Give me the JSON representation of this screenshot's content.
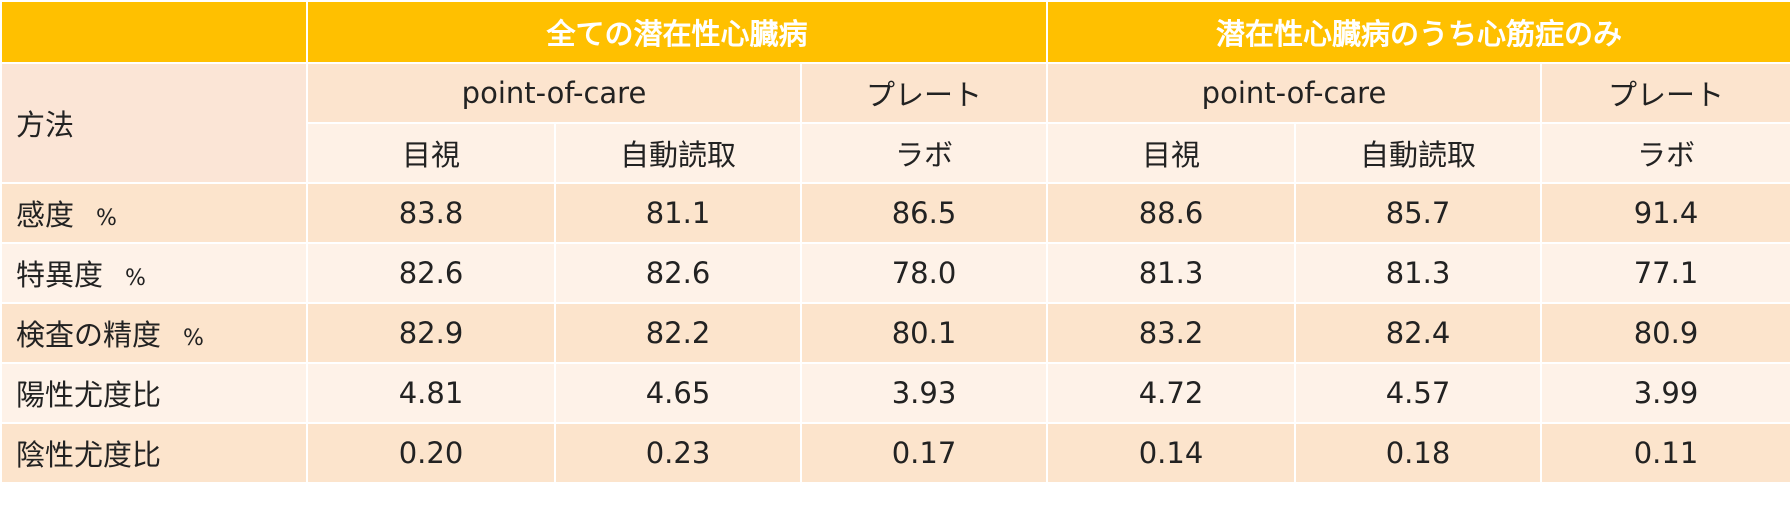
{
  "table": {
    "groups": [
      "全ての潜在性心臓病",
      "潜在性心臓病のうち心筋症のみ"
    ],
    "method_label": "方法",
    "subgroups": [
      "point-of-care",
      "プレート",
      "point-of-care",
      "プレート"
    ],
    "columns": [
      "目視",
      "自動読取",
      "ラボ",
      "目視",
      "自動読取",
      "ラボ"
    ],
    "rows": [
      {
        "label": "感度",
        "unit": "%",
        "values": [
          "83.8",
          "81.1",
          "86.5",
          "88.6",
          "85.7",
          "91.4"
        ]
      },
      {
        "label": "特異度",
        "unit": "%",
        "values": [
          "82.6",
          "82.6",
          "78.0",
          "81.3",
          "81.3",
          "77.1"
        ]
      },
      {
        "label": "検査の精度",
        "unit": "%",
        "values": [
          "82.9",
          "82.2",
          "80.1",
          "83.2",
          "82.4",
          "80.9"
        ]
      },
      {
        "label": "陽性尤度比",
        "values": [
          "4.81",
          "4.65",
          "3.93",
          "4.72",
          "4.57",
          "3.99"
        ]
      },
      {
        "label": "陰性尤度比",
        "values": [
          "0.20",
          "0.23",
          "0.17",
          "0.14",
          "0.18",
          "0.11"
        ]
      }
    ]
  }
}
